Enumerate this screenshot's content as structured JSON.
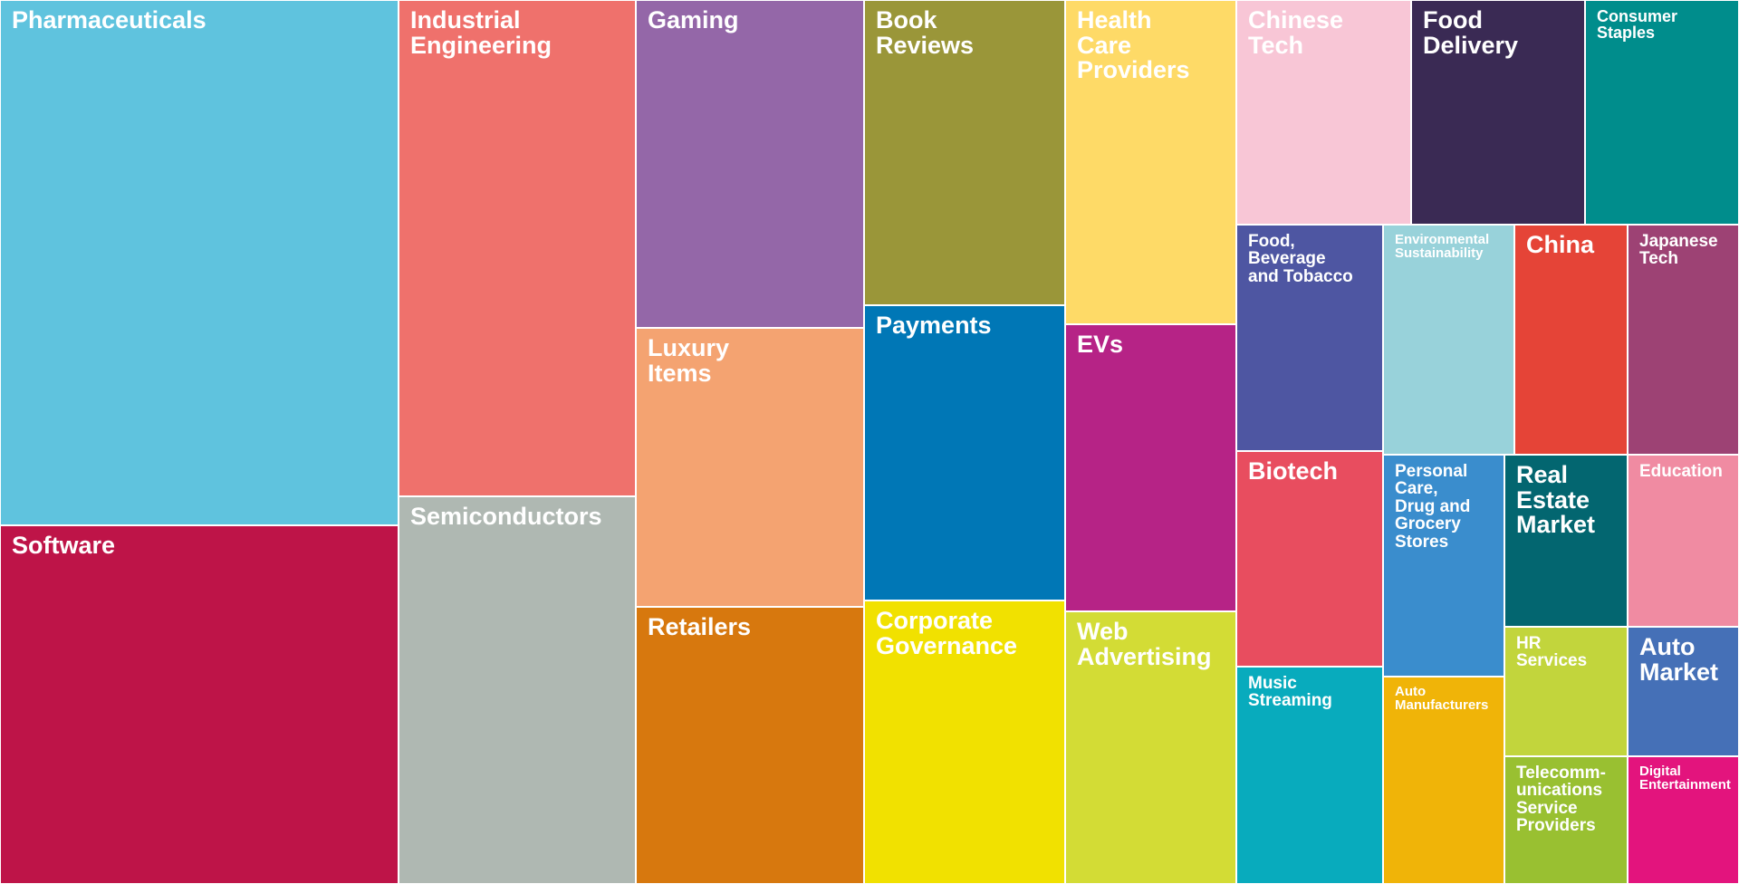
{
  "chart_data": {
    "type": "treemap",
    "title": "",
    "items": [
      {
        "label": "Pharmaceuticals",
        "color": "#5FC3DE"
      },
      {
        "label": "Software",
        "color": "#BE1448"
      },
      {
        "label": "Industrial\nEngineering",
        "color": "#EF716C"
      },
      {
        "label": "Semiconductors",
        "color": "#AFB8B2"
      },
      {
        "label": "Gaming",
        "color": "#9467A8"
      },
      {
        "label": "Luxury\nItems",
        "color": "#F4A371"
      },
      {
        "label": "Retailers",
        "color": "#D7780E"
      },
      {
        "label": "Book\nReviews",
        "color": "#9A9639"
      },
      {
        "label": "Payments",
        "color": "#0077B6"
      },
      {
        "label": "Corporate\nGovernance",
        "color": "#F1E100"
      },
      {
        "label": "Health\nCare\nProviders",
        "color": "#FEDA67"
      },
      {
        "label": "EVs",
        "color": "#B62386"
      },
      {
        "label": "Web\nAdvertising",
        "color": "#D3DC35"
      },
      {
        "label": "Chinese\nTech",
        "color": "#F8C6D6"
      },
      {
        "label": "Food\nDelivery",
        "color": "#3A2A54"
      },
      {
        "label": "Consumer\nStaples",
        "color": "#008D8C"
      },
      {
        "label": "Food,\nBeverage\nand Tobacco",
        "color": "#4E56A2"
      },
      {
        "label": "Environmental\nSustainability",
        "color": "#98D2DA"
      },
      {
        "label": "China",
        "color": "#E54437"
      },
      {
        "label": "Japanese\nTech",
        "color": "#9D4274"
      },
      {
        "label": "Biotech",
        "color": "#E84D5F"
      },
      {
        "label": "Personal\nCare,\nDrug and\nGrocery\nStores",
        "color": "#3A8DCD"
      },
      {
        "label": "Real\nEstate\nMarket",
        "color": "#036670"
      },
      {
        "label": "Education",
        "color": "#F08BA2"
      },
      {
        "label": "Music\nStreaming",
        "color": "#08ABBD"
      },
      {
        "label": "Auto\nManufacturers",
        "color": "#F0B408"
      },
      {
        "label": "HR\nServices",
        "color": "#C2D53C"
      },
      {
        "label": "Auto\nMarket",
        "color": "#4570B7"
      },
      {
        "label": "Telecomm-\nunications\nService\nProviders",
        "color": "#99C031"
      },
      {
        "label": "Digital\nEntertainment",
        "color": "#E3147D"
      }
    ]
  }
}
